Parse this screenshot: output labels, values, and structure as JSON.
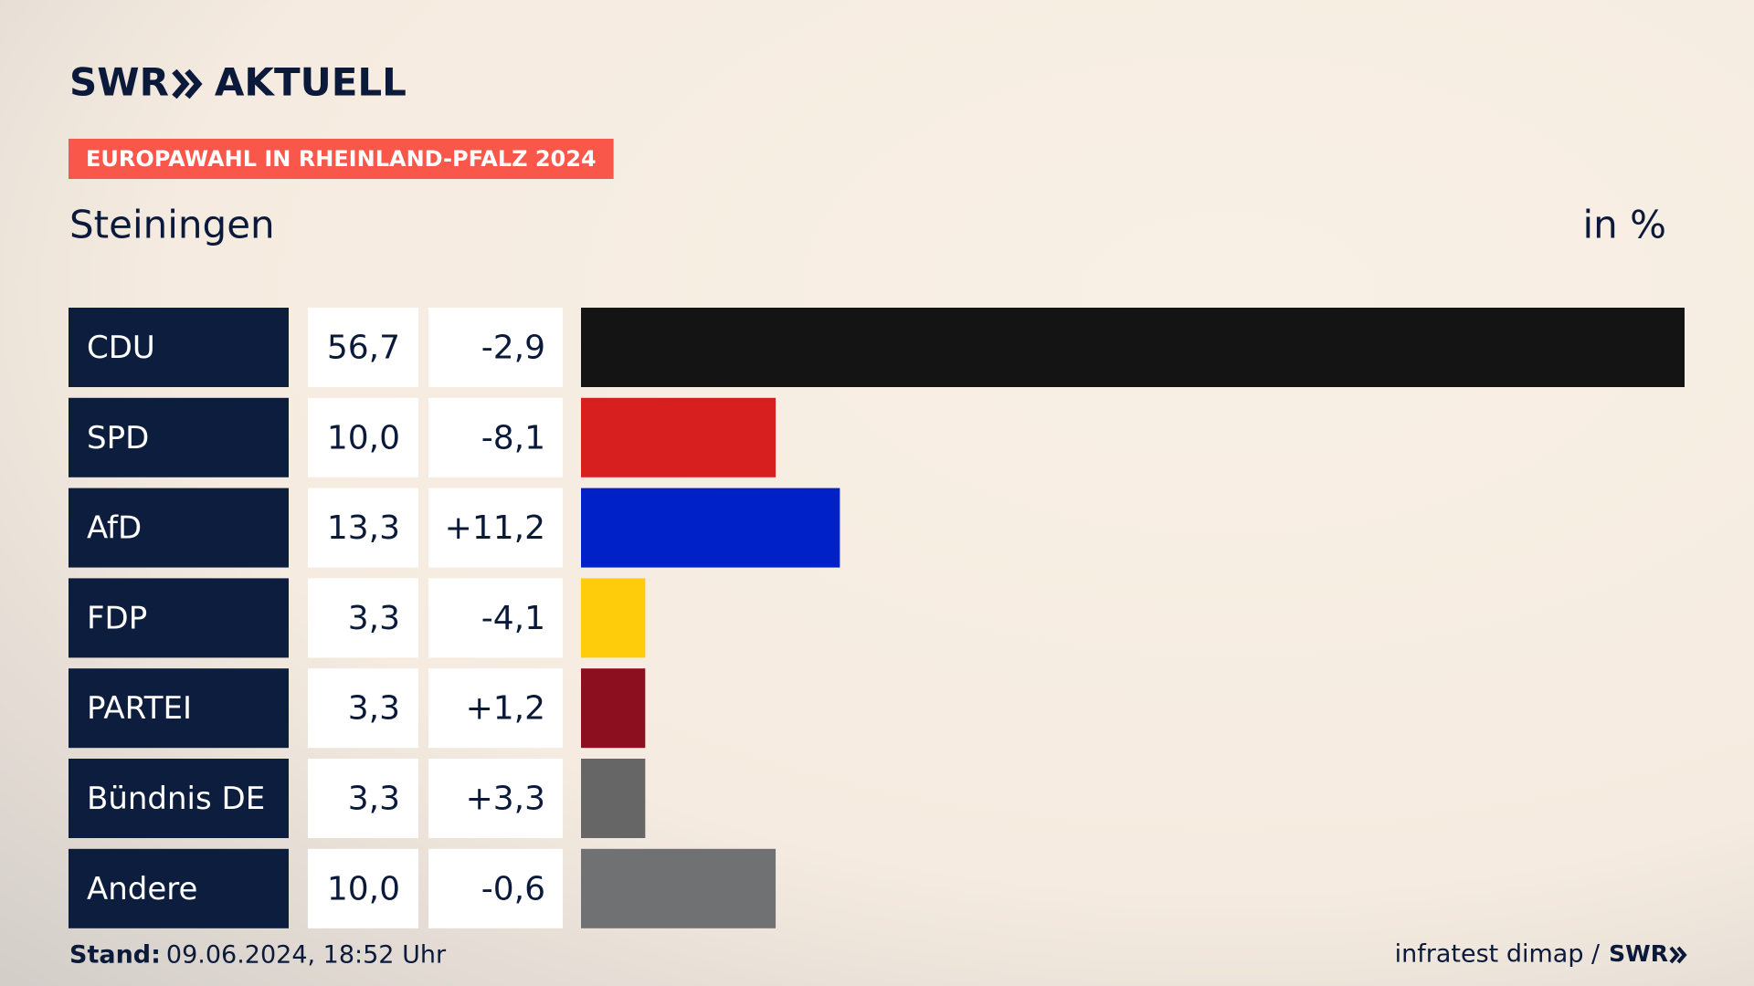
{
  "brand": {
    "name": "SWR",
    "product": "AKTUELL"
  },
  "chart_data": {
    "type": "bar",
    "orientation": "horizontal",
    "tag": "EUROPAWAHL IN RHEINLAND-PFALZ 2024",
    "title": "Steiningen",
    "unit": "in %",
    "categories": [
      "CDU",
      "SPD",
      "AfD",
      "FDP",
      "PARTEI",
      "Bündnis DE",
      "Andere"
    ],
    "values": [
      56.7,
      10.0,
      13.3,
      3.3,
      3.3,
      3.3,
      10.0
    ],
    "value_labels": [
      "56,7",
      "10,0",
      "13,3",
      "3,3",
      "3,3",
      "3,3",
      "10,0"
    ],
    "colors": [
      "#141414",
      "#d81f1f",
      "#0021c8",
      "#fecc0a",
      "#8c0f20",
      "#666666",
      "#707172"
    ],
    "changes": {
      "values": [
        -2.9,
        -8.1,
        11.2,
        -4.1,
        1.2,
        3.3,
        -0.6
      ],
      "value_labels": [
        "-2,9",
        "-8,1",
        "+11,2",
        "-4,1",
        "+1,2",
        "+3,3",
        "-0,6"
      ]
    }
  },
  "footer": {
    "stand_label": "Stand:",
    "stand": "09.06.2024, 18:52 Uhr",
    "source": "infratest dimap /",
    "source_brand": "SWR"
  }
}
